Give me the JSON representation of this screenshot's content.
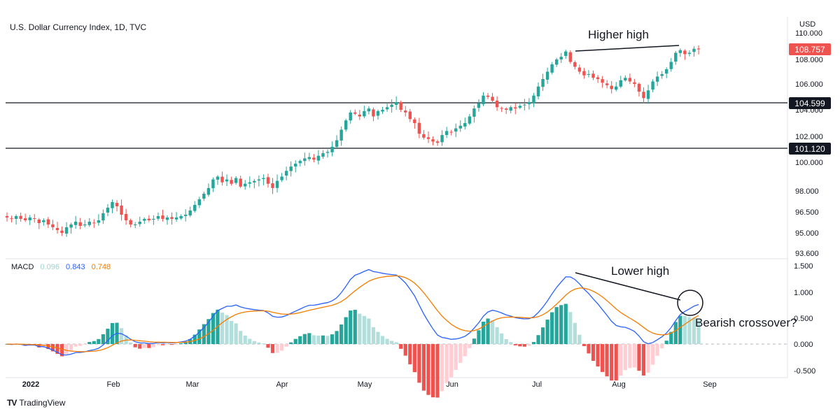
{
  "header": {
    "title": "U.S. Dollar Currency Index, 1D, TVC",
    "currency": "USD"
  },
  "macd_legend": {
    "label": "MACD",
    "hist": "0.096",
    "macd": "0.843",
    "signal": "0.748"
  },
  "brand": {
    "name": "TradingView",
    "logo": "TV"
  },
  "colors": {
    "up": "#26a69a",
    "down": "#ef5350",
    "macd": "#2962ff",
    "signal": "#f57c00",
    "up_light": "#b2dfdb",
    "down_light": "#ffcdd2"
  },
  "chart_data": [
    {
      "type": "candlestick",
      "title": "U.S. Dollar Currency Index, 1D, TVC",
      "yaxis": {
        "ticks": [
          "110.000",
          "108.000",
          "106.000",
          "104.000",
          "102.000",
          "100.000",
          "98.000",
          "96.500",
          "95.000",
          "93.600"
        ],
        "label": "USD"
      },
      "xaxis": {
        "ticks": [
          "2022",
          "Feb",
          "Mar",
          "Apr",
          "May",
          "Jun",
          "Jul",
          "Aug",
          "Sep"
        ]
      },
      "last_price": "108.757",
      "horizontal_levels": [
        "104.599",
        "101.120"
      ],
      "annotations": [
        "Higher high"
      ],
      "closes": [
        96.1,
        96.0,
        96.2,
        96.0,
        95.9,
        96.1,
        96.0,
        95.7,
        95.9,
        95.6,
        95.4,
        95.2,
        95.0,
        95.4,
        95.6,
        95.8,
        95.5,
        95.6,
        95.8,
        95.7,
        95.9,
        96.4,
        96.8,
        97.2,
        96.9,
        96.3,
        95.9,
        95.6,
        95.6,
        95.8,
        96.0,
        95.9,
        96.0,
        96.2,
        96.0,
        96.1,
        96.0,
        96.1,
        96.2,
        96.3,
        96.6,
        97.0,
        97.4,
        97.8,
        98.2,
        98.8,
        99.0,
        98.6,
        98.8,
        98.5,
        98.9,
        98.3,
        98.5,
        98.6,
        98.7,
        98.8,
        98.9,
        98.5,
        98.2,
        98.7,
        99.0,
        99.4,
        99.7,
        99.9,
        100.1,
        100.3,
        100.4,
        100.2,
        100.5,
        100.7,
        100.8,
        101.2,
        101.7,
        102.5,
        103.2,
        103.8,
        103.7,
        103.5,
        103.9,
        104.1,
        103.5,
        103.9,
        104.0,
        104.2,
        104.4,
        104.6,
        104.0,
        103.8,
        103.3,
        103.0,
        102.2,
        101.9,
        101.8,
        101.6,
        101.5,
        102.1,
        102.4,
        102.3,
        102.6,
        102.8,
        103.0,
        103.5,
        104.1,
        104.5,
        105.1,
        105.0,
        104.7,
        104.2,
        104.1,
        104.0,
        104.2,
        104.1,
        104.3,
        104.4,
        104.6,
        105.1,
        105.8,
        106.4,
        107.0,
        107.6,
        108.0,
        108.2,
        108.6,
        107.8,
        107.4,
        107.0,
        106.7,
        106.8,
        106.5,
        106.4,
        106.1,
        105.9,
        105.6,
        105.8,
        106.3,
        106.5,
        106.2,
        106.0,
        105.4,
        104.9,
        105.5,
        106.2,
        106.6,
        106.8,
        107.2,
        107.8,
        108.5,
        108.7,
        108.4,
        108.5,
        108.8,
        108.76
      ],
      "series": [
        {
          "name": "MACD",
          "latest": "0.843"
        },
        {
          "name": "Signal",
          "latest": "0.748"
        },
        {
          "name": "Histogram",
          "latest": "0.096"
        }
      ]
    },
    {
      "type": "line",
      "title": "MACD",
      "yaxis": {
        "ticks": [
          "1.500",
          "1.000",
          "0.500",
          "0.000",
          "-0.500"
        ]
      },
      "annotations": [
        "Lower high",
        "Bearish crossover?"
      ]
    }
  ]
}
